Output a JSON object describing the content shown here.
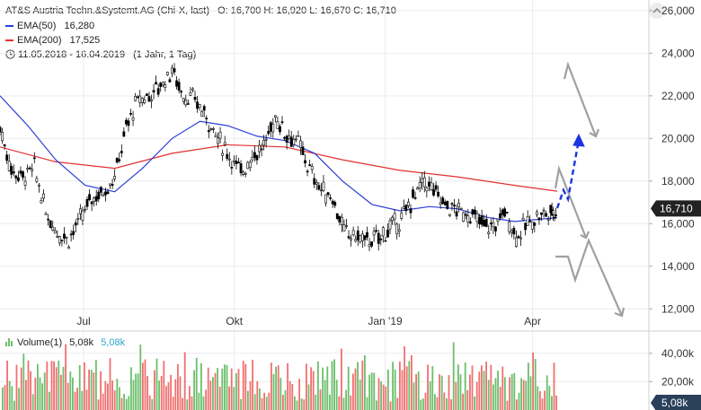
{
  "header": {
    "title": "AT&S Austria Techn.&Systemt.AG (Chi-X, last)",
    "ohlc": "O: 16,700  H: 16,920  L: 16,670  C: 16,710",
    "ema50_label": "EMA(50)",
    "ema50_value": "16,280",
    "ema200_label": "EMA(200)",
    "ema200_value": "17,525",
    "range": "11.05.2018 - 16.04.2019",
    "range_note": "(1 Jahr, 1 Tag)"
  },
  "volume_header": {
    "label": "Volume(1)",
    "value1": "5,08k",
    "value2": "5,08k"
  },
  "colors": {
    "ema50": "#2b3fd6",
    "ema200": "#e3302f",
    "candle": "#000000",
    "vol_up": "#6bbf6b",
    "vol_down": "#f07070",
    "forecast_gray": "#a0a0a0",
    "forecast_blue": "#1a35e0",
    "last_price_bg": "#222222",
    "vol_last_bg": "#2a3f5a"
  },
  "chart_data": {
    "type": "line",
    "title": "AT&S Austria Techn.&Systemt.AG (Chi-X, last)",
    "x_tick_labels": [
      "Jul",
      "Okt",
      "Jan '19",
      "Apr"
    ],
    "y_tick_labels": [
      "26,000",
      "24,000",
      "22,000",
      "20,000",
      "18,000",
      "16,000",
      "14,000",
      "12,000"
    ],
    "ylim": [
      11,
      26.5
    ],
    "last_price": 16.71,
    "last_price_label": "16,710",
    "series": [
      {
        "name": "EMA(50)",
        "x": [
          "2018-05-11",
          "2018-05-28",
          "2018-06-14",
          "2018-07-02",
          "2018-07-20",
          "2018-08-06",
          "2018-08-24",
          "2018-09-10",
          "2018-09-27",
          "2018-10-15",
          "2018-11-01",
          "2018-11-19",
          "2018-12-06",
          "2018-12-24",
          "2019-01-10",
          "2019-01-28",
          "2019-02-14",
          "2019-03-04",
          "2019-03-21",
          "2019-04-16"
        ],
        "values": [
          22.0,
          20.6,
          19.0,
          17.8,
          17.5,
          18.6,
          20.0,
          20.8,
          20.6,
          20.1,
          19.9,
          19.3,
          18.0,
          16.9,
          16.6,
          16.8,
          16.7,
          16.3,
          16.1,
          16.28
        ]
      },
      {
        "name": "EMA(200)",
        "x": [
          "2018-05-11",
          "2018-06-14",
          "2018-07-20",
          "2018-08-24",
          "2018-09-27",
          "2018-11-01",
          "2018-12-06",
          "2019-01-10",
          "2019-02-14",
          "2019-03-21",
          "2019-04-16"
        ],
        "values": [
          19.6,
          18.9,
          18.6,
          19.3,
          19.7,
          19.6,
          19.0,
          18.5,
          18.2,
          17.8,
          17.525
        ]
      },
      {
        "name": "Price",
        "x": [
          "2018-05-11",
          "2018-05-18",
          "2018-05-25",
          "2018-06-01",
          "2018-06-08",
          "2018-06-15",
          "2018-06-22",
          "2018-06-29",
          "2018-07-06",
          "2018-07-13",
          "2018-07-20",
          "2018-07-27",
          "2018-08-03",
          "2018-08-10",
          "2018-08-17",
          "2018-08-24",
          "2018-08-31",
          "2018-09-07",
          "2018-09-14",
          "2018-09-21",
          "2018-09-28",
          "2018-10-05",
          "2018-10-12",
          "2018-10-19",
          "2018-10-26",
          "2018-11-02",
          "2018-11-09",
          "2018-11-16",
          "2018-11-23",
          "2018-11-30",
          "2018-12-07",
          "2018-12-14",
          "2018-12-21",
          "2018-12-28",
          "2019-01-04",
          "2019-01-11",
          "2019-01-18",
          "2019-01-25",
          "2019-02-01",
          "2019-02-08",
          "2019-02-15",
          "2019-02-22",
          "2019-03-01",
          "2019-03-08",
          "2019-03-15",
          "2019-03-22",
          "2019-03-29",
          "2019-04-05",
          "2019-04-12",
          "2019-04-16"
        ],
        "values": [
          20.5,
          18.5,
          18.2,
          18.6,
          16.5,
          15.6,
          15.3,
          16.2,
          17.2,
          17.5,
          18.2,
          20.5,
          21.8,
          22.0,
          22.5,
          23.2,
          22.0,
          21.8,
          21.0,
          20.0,
          19.2,
          18.4,
          19.2,
          19.6,
          21.0,
          20.2,
          19.8,
          18.5,
          17.6,
          17.2,
          15.6,
          15.4,
          15.2,
          15.3,
          15.8,
          16.2,
          17.2,
          18.0,
          17.4,
          16.8,
          16.6,
          16.4,
          16.0,
          15.8,
          16.6,
          15.4,
          16.0,
          16.4,
          16.5,
          16.71
        ]
      }
    ],
    "volume": {
      "name": "Volume(1)",
      "y_tick_labels": [
        "40,00k",
        "20,00k"
      ],
      "last_value_label": "5,08k"
    },
    "forecast_arrows": [
      "up-blue",
      "up-gray",
      "down-gray"
    ],
    "grid": true
  }
}
